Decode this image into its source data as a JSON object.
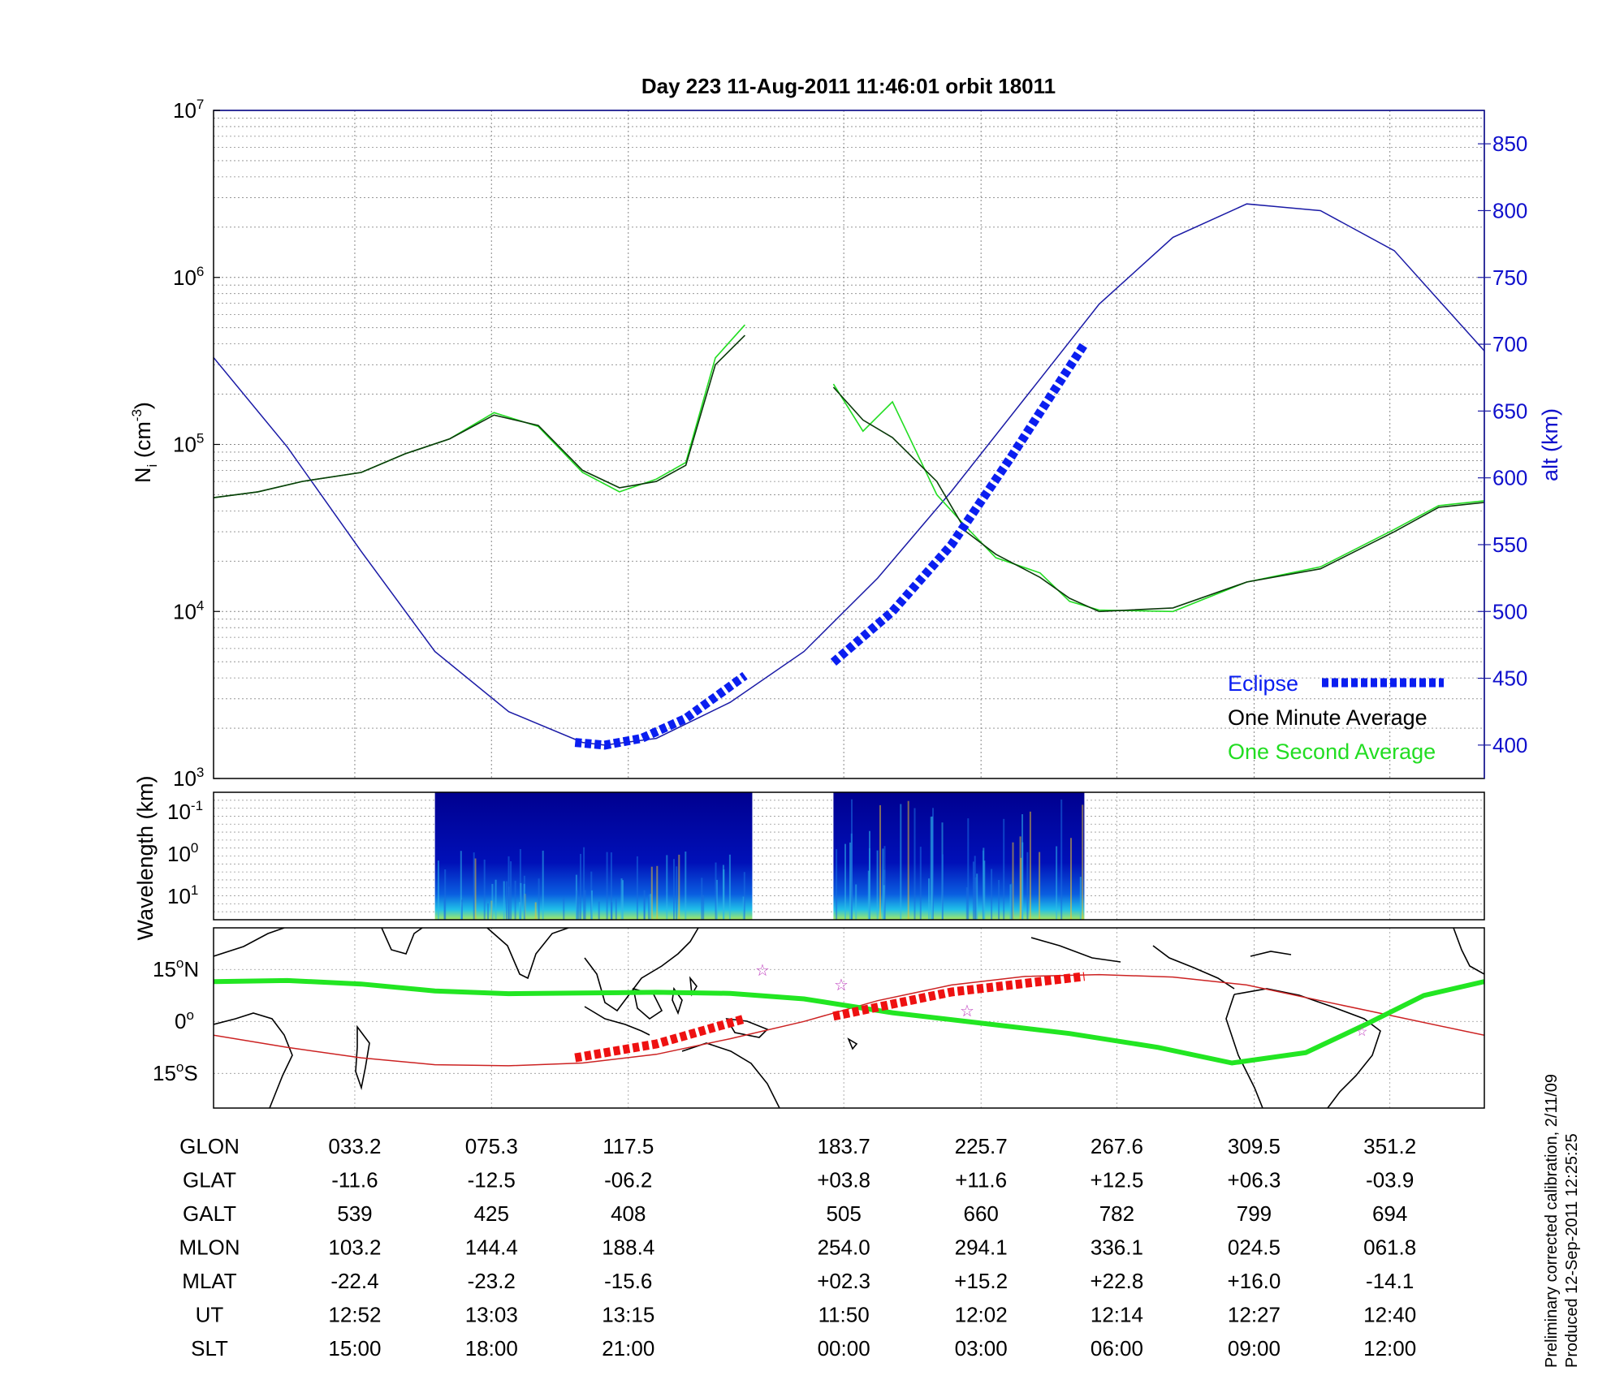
{
  "title": "Day 223  11-Aug-2011 11:46:01   orbit 18011",
  "colors": {
    "altitude": "#1a1aa6",
    "eclipse": "#0a1ef0",
    "one_minute": "#0b3a0b",
    "one_second": "#22dd22",
    "track_glat": "#22e622",
    "track_magnetic": "#cc2222",
    "track_eclipse": "#ee1111",
    "spectrogram_bg": "#00008f"
  },
  "panel_density": {
    "ylabel_base": "N",
    "ylabel_sub": "i",
    "ylabel_unit_open": " (cm",
    "ylabel_unit_sup": "-3",
    "ylabel_unit_close": ")",
    "y_tick_base": "10",
    "y_tick_exps": [
      "3",
      "4",
      "5",
      "6",
      "7"
    ],
    "right_label": "alt (km)",
    "right_ticks": [
      "400",
      "450",
      "500",
      "550",
      "600",
      "650",
      "700",
      "750",
      "800",
      "850"
    ]
  },
  "legend": {
    "eclipse": "Eclipse",
    "one_minute": "One Minute Average",
    "one_second": "One Second Average"
  },
  "panel_spectrogram": {
    "ylabel": "Wavelength (km)",
    "y_tick_base": "10",
    "y_tick_exps": [
      "-1",
      "0",
      "1"
    ]
  },
  "panel_map": {
    "lat_labels": [
      "15",
      "N",
      "0",
      "15",
      "S"
    ],
    "degree_sign": "o"
  },
  "table": {
    "rows": [
      {
        "label": "GLON",
        "values": [
          "033.2",
          "075.3",
          "117.5",
          "183.7",
          "225.7",
          "267.6",
          "309.5",
          "351.2"
        ]
      },
      {
        "label": "GLAT",
        "values": [
          "-11.6",
          "-12.5",
          "-06.2",
          "+03.8",
          "+11.6",
          "+12.5",
          "+06.3",
          "-03.9"
        ]
      },
      {
        "label": "GALT",
        "values": [
          "539",
          "425",
          "408",
          "505",
          "660",
          "782",
          "799",
          "694"
        ]
      },
      {
        "label": "MLON",
        "values": [
          "103.2",
          "144.4",
          "188.4",
          "254.0",
          "294.1",
          "336.1",
          "024.5",
          "061.8"
        ]
      },
      {
        "label": "MLAT",
        "values": [
          "-22.4",
          "-23.2",
          "-15.6",
          "+02.3",
          "+15.2",
          "+22.8",
          "+16.0",
          "-14.1"
        ]
      },
      {
        "label": "UT",
        "values": [
          "12:52",
          "13:03",
          "13:15",
          "11:50",
          "12:02",
          "12:14",
          "12:27",
          "12:40"
        ]
      },
      {
        "label": "SLT",
        "values": [
          "15:00",
          "18:00",
          "21:00",
          "00:00",
          "03:00",
          "06:00",
          "09:00",
          "12:00"
        ]
      }
    ]
  },
  "footnote": {
    "line1": "Preliminary corrected calibration, 2/11/09",
    "line2": "Produced 12-Sep-2011 12:25:25"
  },
  "chart_data": {
    "type": "line",
    "title": "Day 223  11-Aug-2011 11:46:01   orbit 18011",
    "x_ticks_glon": [
      "033.2",
      "075.3",
      "117.5",
      "183.7",
      "225.7",
      "267.6",
      "309.5",
      "351.2"
    ],
    "x_ticks_slt": [
      "15:00",
      "18:00",
      "21:00",
      "00:00",
      "03:00",
      "06:00",
      "09:00",
      "12:00"
    ],
    "xlim": [
      0,
      8.61
    ],
    "y_left": {
      "label": "Ni (cm-3)",
      "scale": "log",
      "range": [
        1000,
        10000000
      ]
    },
    "y_right": {
      "label": "alt (km)",
      "range": [
        375,
        875
      ]
    },
    "altitude": {
      "x": [
        0,
        0.5,
        1,
        1.5,
        2,
        2.5,
        2.65,
        3,
        3.5,
        4,
        4.5,
        5,
        5.5,
        6,
        6.5,
        7,
        7.5,
        8,
        8.61
      ],
      "values": [
        690,
        623,
        545,
        470,
        425,
        402,
        400,
        405,
        432,
        470,
        525,
        590,
        660,
        730,
        780,
        805,
        800,
        770,
        695
      ]
    },
    "one_minute_average": {
      "segments": [
        {
          "x": [
            0,
            0.3,
            0.6,
            1.0,
            1.3,
            1.6,
            1.9,
            2.2,
            2.5,
            2.75,
            3.0,
            3.2,
            3.4,
            3.6
          ],
          "values": [
            48000,
            52000,
            60000,
            68000,
            88000,
            108000,
            150000,
            130000,
            70000,
            55000,
            60000,
            75000,
            300000,
            450000
          ]
        },
        {
          "x": [
            4.2,
            4.4,
            4.6,
            4.9,
            5.1,
            5.3,
            5.6,
            5.8,
            6.0,
            6.5,
            7.0,
            7.5,
            8.0,
            8.3,
            8.61
          ],
          "values": [
            220000,
            140000,
            110000,
            60000,
            30000,
            22000,
            16000,
            12000,
            10000,
            10500,
            15000,
            18000,
            30000,
            42000,
            45000
          ]
        }
      ]
    },
    "one_second_average": {
      "segments": [
        {
          "x": [
            0,
            0.3,
            0.6,
            1.0,
            1.3,
            1.6,
            1.9,
            2.2,
            2.5,
            2.75,
            3.0,
            3.2,
            3.4,
            3.6
          ],
          "values": [
            48000,
            52000,
            60000,
            68000,
            88000,
            108000,
            155000,
            128000,
            68000,
            52000,
            62000,
            78000,
            330000,
            520000
          ]
        },
        {
          "x": [
            4.2,
            4.4,
            4.6,
            4.9,
            5.1,
            5.3,
            5.6,
            5.8,
            6.0,
            6.5,
            7.0,
            7.5,
            8.0,
            8.3,
            8.61
          ],
          "values": [
            230000,
            120000,
            180000,
            50000,
            32000,
            21000,
            17000,
            11500,
            10200,
            10000,
            15000,
            18500,
            31000,
            43000,
            46000
          ]
        }
      ]
    },
    "eclipse": {
      "segments": [
        {
          "x": [
            2.45,
            2.65,
            2.9,
            3.2,
            3.6
          ],
          "values": [
            402,
            400,
            405,
            420,
            452
          ]
        },
        {
          "x": [
            4.2,
            4.6,
            5.0,
            5.4,
            5.9
          ],
          "values": [
            462,
            500,
            550,
            615,
            700
          ]
        }
      ]
    },
    "spectrogram": {
      "ylabel": "Wavelength (km)",
      "data_intervals_x": [
        [
          1.5,
          3.65
        ],
        [
          4.2,
          5.9
        ]
      ]
    },
    "ground_track": {
      "lat_range": [
        -25,
        27
      ],
      "glat_track": {
        "x": [
          0,
          0.5,
          1.0,
          1.5,
          2.0,
          2.5,
          3.0,
          3.5,
          4.0,
          4.6,
          5.2,
          5.8,
          6.4,
          6.9,
          7.4,
          7.8,
          8.2,
          8.61
        ],
        "values": [
          11.5,
          11.8,
          10.8,
          8.8,
          8.0,
          8.2,
          8.4,
          8.1,
          6.5,
          2.5,
          -0.5,
          -3.5,
          -7.5,
          -12.0,
          -9.0,
          -1.0,
          7.5,
          11.5
        ]
      },
      "magnetic_track": {
        "x": [
          0,
          0.5,
          1.0,
          1.5,
          2.0,
          2.5,
          3.0,
          3.5,
          4.0,
          4.5,
          5.0,
          5.5,
          6.0,
          6.5,
          7.0,
          7.5,
          8.0,
          8.61
        ],
        "values": [
          -4.0,
          -7.5,
          -10.5,
          -12.5,
          -12.8,
          -12.0,
          -9.5,
          -5.0,
          0.0,
          6.0,
          10.5,
          13.0,
          13.5,
          12.8,
          10.5,
          6.0,
          1.5,
          -4.0
        ]
      },
      "eclipse_segments": [
        {
          "x": [
            2.45,
            3.0,
            3.6
          ],
          "values": [
            -10.5,
            -6.5,
            0.8
          ]
        },
        {
          "x": [
            4.2,
            5.0,
            5.9
          ],
          "values": [
            1.5,
            8.5,
            13.0
          ]
        }
      ]
    }
  }
}
